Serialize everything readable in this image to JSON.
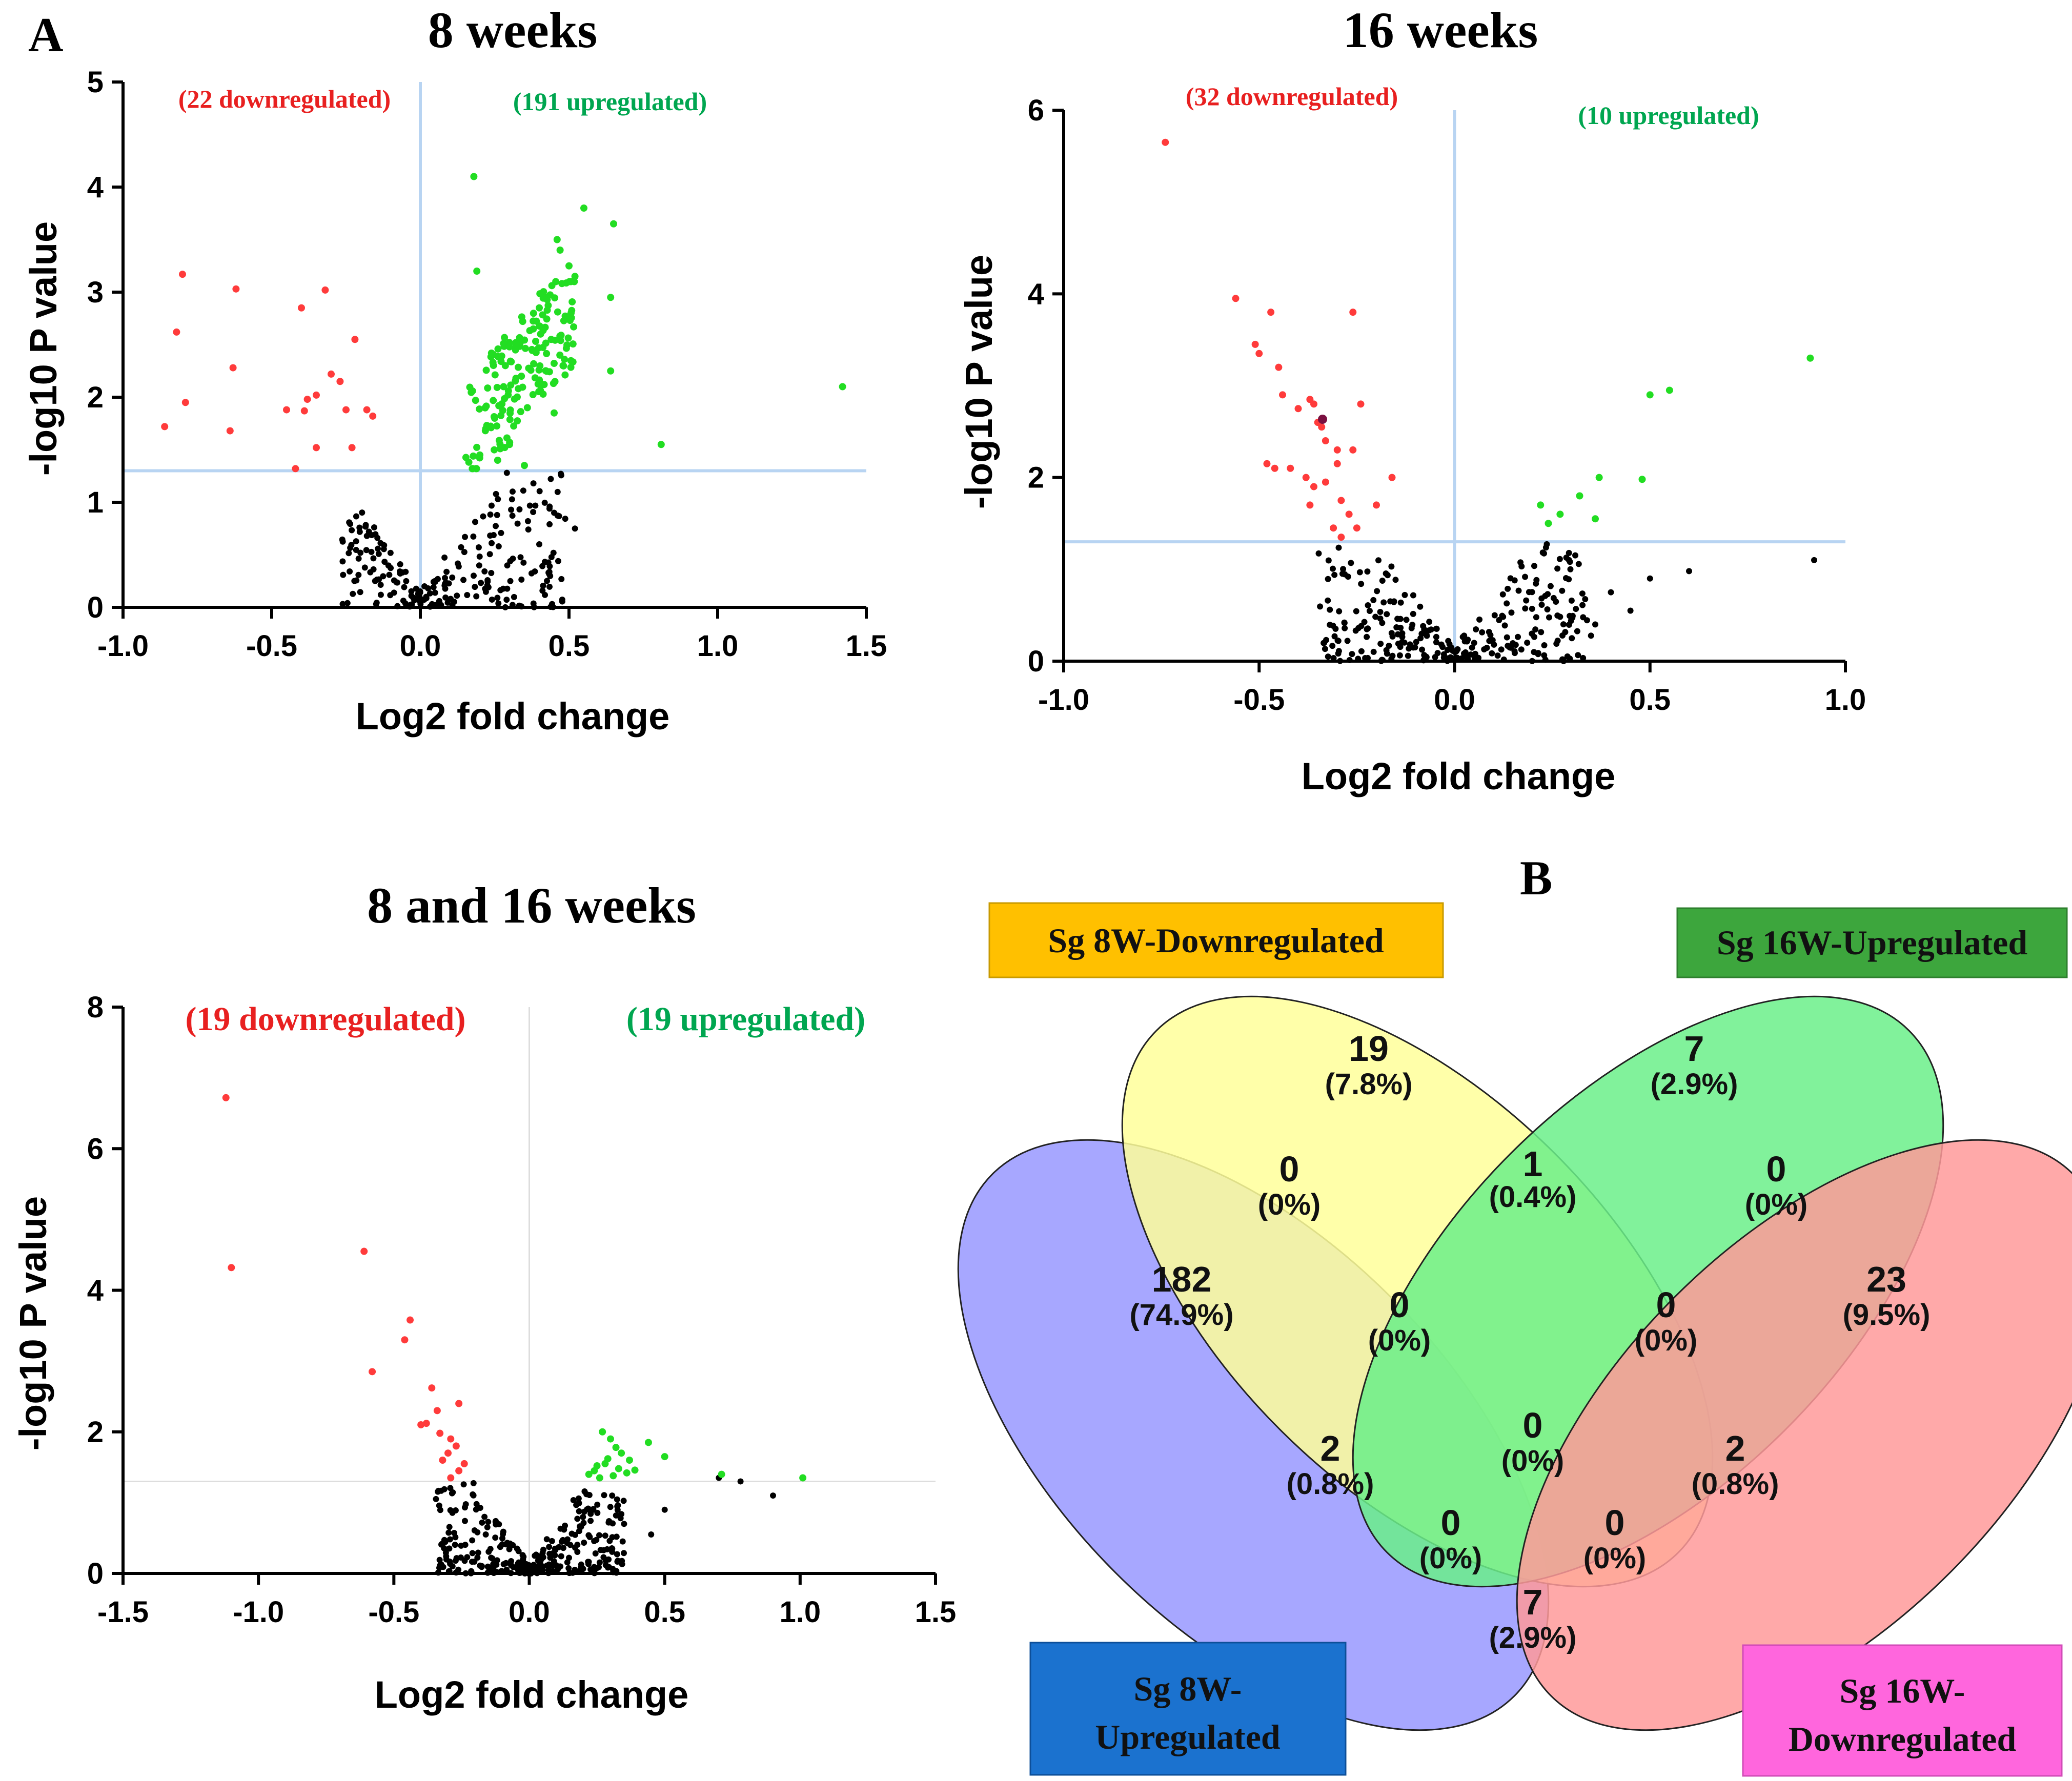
{
  "figure": {
    "panel_a_letter": "A",
    "panel_b_letter": "B"
  },
  "chart_data": [
    {
      "type": "scatter",
      "title": "8 weeks",
      "xlabel": "Log2 fold change",
      "ylabel": "-log10 P value",
      "xlim": [
        -1.0,
        1.5
      ],
      "ylim": [
        0,
        5
      ],
      "xticks": [
        "-1.0",
        "-0.5",
        "0.0",
        "0.5",
        "1.0",
        "1.5"
      ],
      "yticks": [
        "0",
        "1",
        "2",
        "3",
        "4",
        "5"
      ],
      "threshold_y": 1.3,
      "threshold_x": 0,
      "down_label": "(22 downregulated)",
      "up_label": "(191 upregulated)",
      "colors": {
        "down": "#ff3b3b",
        "up": "#22dd22",
        "ns": "#000000",
        "line": "#b8d4f2"
      },
      "down_points": [
        [
          -0.86,
          1.72
        ],
        [
          -0.82,
          2.62
        ],
        [
          -0.8,
          3.17
        ],
        [
          -0.79,
          1.95
        ],
        [
          -0.63,
          2.28
        ],
        [
          -0.62,
          3.03
        ],
        [
          -0.64,
          1.68
        ],
        [
          -0.45,
          1.88
        ],
        [
          -0.42,
          1.32
        ],
        [
          -0.4,
          2.85
        ],
        [
          -0.39,
          1.87
        ],
        [
          -0.38,
          1.98
        ],
        [
          -0.35,
          2.02
        ],
        [
          -0.35,
          1.52
        ],
        [
          -0.32,
          3.02
        ],
        [
          -0.3,
          2.22
        ],
        [
          -0.27,
          2.15
        ],
        [
          -0.25,
          1.88
        ],
        [
          -0.23,
          1.52
        ],
        [
          -0.22,
          2.55
        ],
        [
          -0.18,
          1.88
        ],
        [
          -0.16,
          1.82
        ]
      ],
      "up_points": [
        [
          0.18,
          4.1
        ],
        [
          0.19,
          3.2
        ],
        [
          0.55,
          3.8
        ],
        [
          0.65,
          3.65
        ],
        [
          0.46,
          3.5
        ],
        [
          0.47,
          3.4
        ],
        [
          0.5,
          3.25
        ],
        [
          0.52,
          3.15
        ],
        [
          0.64,
          2.95
        ],
        [
          0.42,
          2.95
        ],
        [
          0.4,
          2.85
        ],
        [
          0.64,
          2.25
        ],
        [
          1.42,
          2.1
        ],
        [
          0.81,
          1.55
        ],
        [
          0.34,
          2.2
        ],
        [
          0.36,
          1.9
        ],
        [
          0.28,
          2.1
        ],
        [
          0.25,
          1.8
        ],
        [
          0.22,
          1.7
        ],
        [
          0.3,
          1.55
        ],
        [
          0.45,
          1.85
        ],
        [
          0.48,
          2.3
        ],
        [
          0.32,
          2.45
        ],
        [
          0.38,
          2.65
        ],
        [
          0.44,
          2.55
        ],
        [
          0.26,
          1.4
        ],
        [
          0.35,
          1.35
        ],
        [
          0.2,
          1.45
        ]
      ],
      "up_cluster": {
        "x_min": 0.15,
        "x_max": 0.52,
        "y_min": 1.32,
        "y_max": 3.1,
        "count": 163
      },
      "ns_cluster": {
        "count": 230
      }
    },
    {
      "type": "scatter",
      "title": "16 weeks",
      "xlabel": "Log2 fold change",
      "ylabel": "-log10 P value",
      "xlim": [
        -1.0,
        1.0
      ],
      "ylim": [
        0,
        6
      ],
      "xticks": [
        "-1.0",
        "-0.5",
        "0.0",
        "0.5",
        "1.0"
      ],
      "yticks": [
        "0",
        "2",
        "4",
        "6"
      ],
      "threshold_y": 1.3,
      "threshold_x": 0,
      "down_label": "(32 downregulated)",
      "up_label": "(10 upregulated)",
      "colors": {
        "down": "#ff3b3b",
        "up": "#22dd22",
        "ns": "#000000",
        "line": "#b8d4f2"
      },
      "down_points": [
        [
          -0.74,
          5.65
        ],
        [
          -0.56,
          3.95
        ],
        [
          -0.51,
          3.45
        ],
        [
          -0.5,
          3.35
        ],
        [
          -0.47,
          3.8
        ],
        [
          -0.45,
          3.2
        ],
        [
          -0.44,
          2.9
        ],
        [
          -0.4,
          2.75
        ],
        [
          -0.37,
          2.85
        ],
        [
          -0.36,
          2.8
        ],
        [
          -0.35,
          2.6
        ],
        [
          -0.34,
          2.55
        ],
        [
          -0.33,
          2.4
        ],
        [
          -0.3,
          2.3
        ],
        [
          -0.26,
          3.8
        ],
        [
          -0.24,
          2.8
        ],
        [
          -0.26,
          2.3
        ],
        [
          -0.3,
          2.15
        ],
        [
          -0.33,
          1.95
        ],
        [
          -0.36,
          1.9
        ],
        [
          -0.37,
          1.7
        ],
        [
          -0.38,
          2.0
        ],
        [
          -0.46,
          2.1
        ],
        [
          -0.48,
          2.15
        ],
        [
          -0.42,
          2.1
        ],
        [
          -0.29,
          1.75
        ],
        [
          -0.27,
          1.6
        ],
        [
          -0.31,
          1.45
        ],
        [
          -0.29,
          1.35
        ],
        [
          -0.25,
          1.45
        ],
        [
          -0.16,
          2.0
        ],
        [
          -0.2,
          1.7
        ]
      ],
      "up_points": [
        [
          0.91,
          3.3
        ],
        [
          0.55,
          2.95
        ],
        [
          0.5,
          2.9
        ],
        [
          0.48,
          1.98
        ],
        [
          0.37,
          2.0
        ],
        [
          0.32,
          1.8
        ],
        [
          0.27,
          1.6
        ],
        [
          0.24,
          1.5
        ],
        [
          0.22,
          1.7
        ],
        [
          0.36,
          1.55
        ]
      ],
      "ns_cluster": {
        "count": 280
      }
    },
    {
      "type": "scatter",
      "title": "8 and 16 weeks",
      "xlabel": "Log2 fold change",
      "ylabel": "-log10 P value",
      "xlim": [
        -1.5,
        1.5
      ],
      "ylim": [
        0,
        8
      ],
      "xticks": [
        "-1.5",
        "-1.0",
        "-0.5",
        "0.0",
        "0.5",
        "1.0",
        "1.5"
      ],
      "yticks": [
        "0",
        "2",
        "4",
        "6",
        "8"
      ],
      "threshold_y": 1.3,
      "threshold_x": 0,
      "down_label": "(19 downregulated)",
      "up_label": "(19 upregulated)",
      "colors": {
        "down": "#ff3b3b",
        "up": "#22dd22",
        "ns": "#000000",
        "line": "#dddddd"
      },
      "down_points": [
        [
          -1.12,
          6.72
        ],
        [
          -1.1,
          4.32
        ],
        [
          -0.61,
          4.55
        ],
        [
          -0.44,
          3.58
        ],
        [
          -0.46,
          3.3
        ],
        [
          -0.58,
          2.85
        ],
        [
          -0.36,
          2.62
        ],
        [
          -0.34,
          2.3
        ],
        [
          -0.26,
          2.4
        ],
        [
          -0.4,
          2.1
        ],
        [
          -0.38,
          2.12
        ],
        [
          -0.33,
          1.98
        ],
        [
          -0.29,
          1.9
        ],
        [
          -0.3,
          1.7
        ],
        [
          -0.27,
          1.8
        ],
        [
          -0.32,
          1.6
        ],
        [
          -0.26,
          1.45
        ],
        [
          -0.29,
          1.35
        ],
        [
          -0.24,
          1.55
        ]
      ],
      "up_points": [
        [
          0.27,
          2.0
        ],
        [
          0.3,
          1.9
        ],
        [
          0.34,
          1.7
        ],
        [
          0.37,
          1.6
        ],
        [
          0.44,
          1.85
        ],
        [
          0.5,
          1.65
        ],
        [
          0.71,
          1.4
        ],
        [
          1.01,
          1.35
        ],
        [
          0.24,
          1.45
        ],
        [
          0.28,
          1.55
        ],
        [
          0.33,
          1.48
        ],
        [
          0.22,
          1.4
        ],
        [
          0.31,
          1.38
        ],
        [
          0.26,
          1.35
        ],
        [
          0.36,
          1.42
        ],
        [
          0.29,
          1.62
        ],
        [
          0.25,
          1.52
        ],
        [
          0.32,
          1.78
        ],
        [
          0.39,
          1.46
        ]
      ],
      "ns_cluster": {
        "count": 300
      }
    },
    {
      "type": "venn",
      "sets": [
        {
          "name": "Sg 8W-Downregulated",
          "color": "#fdfd8a",
          "box_color": "#ffc000"
        },
        {
          "name": "Sg 16W-Upregulated",
          "color": "#4cf07a",
          "box_color": "#3aa83a"
        },
        {
          "name": "Sg 8W-Upregulated",
          "color": "#8080ff",
          "box_color": "#1b6fcc"
        },
        {
          "name": "Sg 16W-Downregulated",
          "color": "#ff7f7f",
          "box_color": "#ff66dd"
        }
      ],
      "regions": [
        {
          "sets": [
            "8W-Down"
          ],
          "count": "19",
          "percent": "(7.8%)"
        },
        {
          "sets": [
            "16W-Up"
          ],
          "count": "7",
          "percent": "(2.9%)"
        },
        {
          "sets": [
            "8W-Up"
          ],
          "count": "182",
          "percent": "(74.9%)"
        },
        {
          "sets": [
            "16W-Down"
          ],
          "count": "23",
          "percent": "(9.5%)"
        },
        {
          "sets": [
            "8W-Down",
            "16W-Up"
          ],
          "count": "1",
          "percent": "(0.4%)"
        },
        {
          "sets": [
            "8W-Up",
            "8W-Down"
          ],
          "count": "0",
          "percent": "(0%)"
        },
        {
          "sets": [
            "16W-Up",
            "16W-Down"
          ],
          "count": "0",
          "percent": "(0%)"
        },
        {
          "sets": [
            "8W-Up",
            "8W-Down",
            "16W-Up"
          ],
          "count": "0",
          "percent": "(0%)"
        },
        {
          "sets": [
            "8W-Down",
            "16W-Up",
            "16W-Down"
          ],
          "count": "0",
          "percent": "(0%)"
        },
        {
          "sets": [
            "8W-Up",
            "16W-Up"
          ],
          "count": "2",
          "percent": "(0.8%)"
        },
        {
          "sets": [
            "8W-Down",
            "16W-Down"
          ],
          "count": "2",
          "percent": "(0.8%)"
        },
        {
          "sets": [
            "all"
          ],
          "count": "0",
          "percent": "(0%)"
        },
        {
          "sets": [
            "8W-Up",
            "16W-Up",
            "16W-Down"
          ],
          "count": "0",
          "percent": "(0%)"
        },
        {
          "sets": [
            "8W-Up",
            "8W-Down",
            "16W-Down"
          ],
          "count": "0",
          "percent": "(0%)"
        },
        {
          "sets": [
            "8W-Up",
            "16W-Down"
          ],
          "count": "7",
          "percent": "(2.9%)"
        }
      ]
    }
  ],
  "venn_labels": {
    "box1": "Sg 8W-Downregulated",
    "box2": "Sg 16W-Upregulated",
    "box3_line1": "Sg 8W-",
    "box3_line2": "Upregulated",
    "box4_line1": "Sg 16W-",
    "box4_line2": "Downregulated"
  }
}
